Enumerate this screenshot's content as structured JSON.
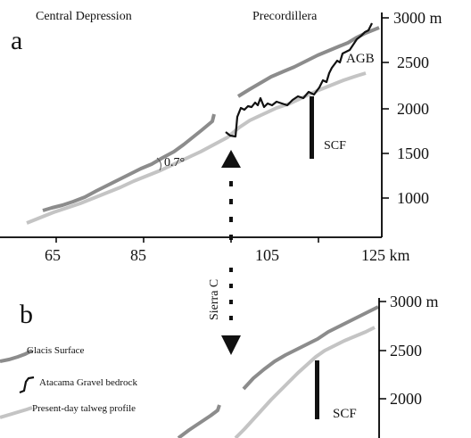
{
  "panel_a": {
    "label": "a",
    "region_left": "Central Depression",
    "region_right": "Precordillera",
    "agb_label": "AGB",
    "angle_label": "0.7°",
    "fault_label": "SCF",
    "x_ticks": [
      "65",
      "85",
      "105",
      "125 km"
    ],
    "y_ticks": [
      "3000 m",
      "2500",
      "2000",
      "1500",
      "1000"
    ]
  },
  "panel_b": {
    "label": "b",
    "fault_label": "SCF",
    "y_ticks": [
      "3000 m",
      "2500",
      "2000"
    ]
  },
  "section_label": "Sierra C",
  "legend": [
    {
      "text": "Glacis Surface",
      "color": "#8c8c8c"
    },
    {
      "text": "Atacama Gravel bedrock",
      "color": "#111111"
    },
    {
      "text": "Present-day talweg profile",
      "color": "#c4c4c4"
    }
  ],
  "colors": {
    "glacis": "#8c8c8c",
    "bedrock": "#111111",
    "talweg": "#c4c4c4",
    "axis": "#000000"
  }
}
